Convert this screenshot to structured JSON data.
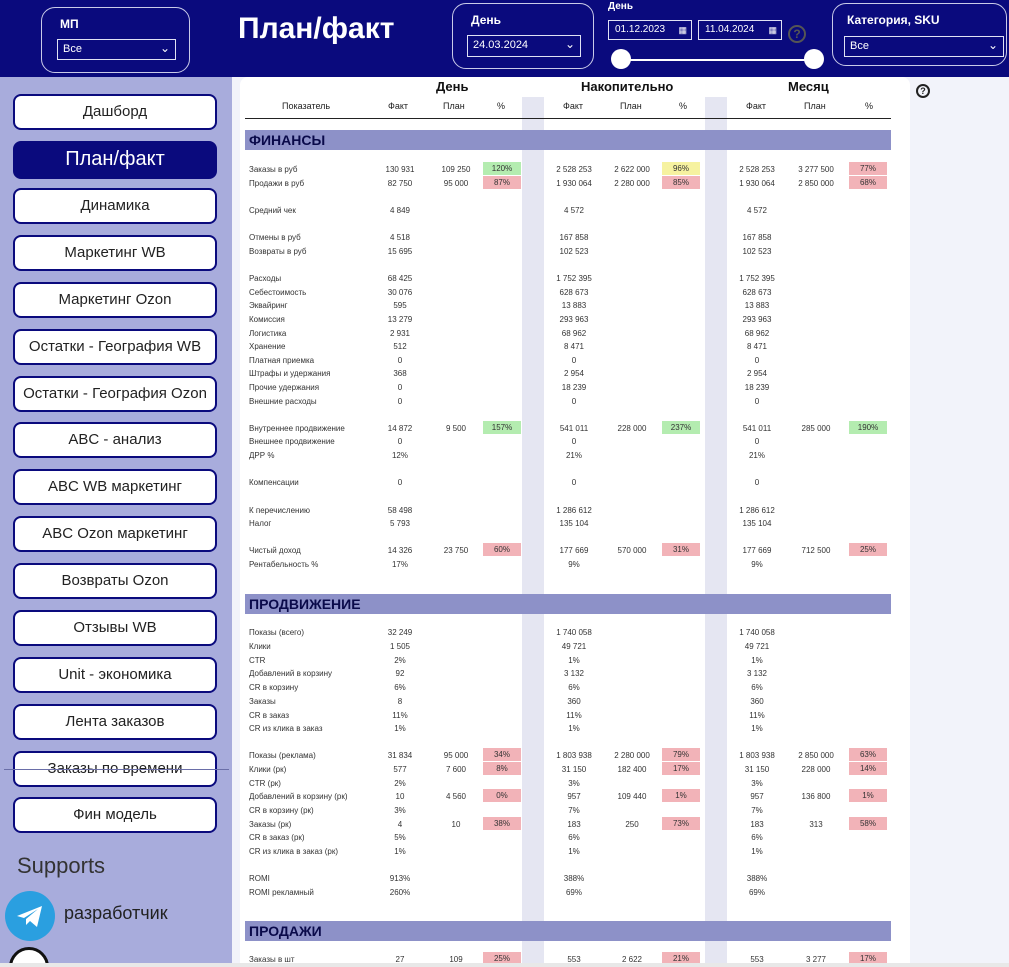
{
  "header": {
    "title": "План/факт",
    "mp": {
      "label": "МП",
      "value": "Все"
    },
    "day": {
      "label": "День",
      "value": "24.03.2024"
    },
    "range": {
      "label": "День",
      "from": "01.12.2023",
      "to": "11.04.2024"
    },
    "category": {
      "label": "Категория, SKU",
      "value": "Все"
    },
    "help": "?"
  },
  "sidebar": {
    "items": [
      {
        "label": "Дашборд"
      },
      {
        "label": "План/факт"
      },
      {
        "label": "Динамика"
      },
      {
        "label": "Маркетинг WB"
      },
      {
        "label": "Маркетинг Ozon"
      },
      {
        "label": "Остатки - География WB"
      },
      {
        "label": "Остатки - География Ozon"
      },
      {
        "label": "ABC - анализ"
      },
      {
        "label": "ABC WB маркетинг"
      },
      {
        "label": "ABC Ozon маркетинг"
      },
      {
        "label": "Возвраты Ozon"
      },
      {
        "label": "Отзывы WB"
      },
      {
        "label": "Unit - экономика"
      },
      {
        "label": "Лента заказов"
      },
      {
        "label": "Заказы по времени"
      },
      {
        "label": "Фин модель"
      }
    ],
    "supports": "Supports",
    "developer": "разработчик"
  },
  "table": {
    "groups": [
      "День",
      "Накопительно",
      "Месяц"
    ],
    "columns": {
      "indicator": "Показатель",
      "fact": "Факт",
      "plan": "План",
      "pct": "%"
    },
    "sections": [
      {
        "title": "ФИНАНСЫ"
      },
      {
        "title": "ПРОДВИЖЕНИЕ"
      },
      {
        "title": "ПРОДАЖИ"
      }
    ],
    "rows": [
      {
        "label": "Заказы в руб",
        "d": [
          "130 931",
          "109 250",
          "120%",
          "green"
        ],
        "n": [
          "2 528 253",
          "2 622 000",
          "96%",
          "yellow"
        ],
        "m": [
          "2 528 253",
          "3 277 500",
          "77%",
          "red"
        ]
      },
      {
        "label": "Продажи в руб",
        "d": [
          "82 750",
          "95 000",
          "87%",
          "red"
        ],
        "n": [
          "1 930 064",
          "2 280 000",
          "85%",
          "red"
        ],
        "m": [
          "1 930 064",
          "2 850 000",
          "68%",
          "red"
        ]
      },
      {
        "label": "Средний чек",
        "d": [
          "4 849",
          "",
          "",
          ""
        ],
        "n": [
          "4 572",
          "",
          "",
          ""
        ],
        "m": [
          "4 572",
          "",
          "",
          ""
        ]
      },
      {
        "label": "Отмены в руб",
        "d": [
          "4 518",
          "",
          "",
          ""
        ],
        "n": [
          "167 858",
          "",
          "",
          ""
        ],
        "m": [
          "167 858",
          "",
          "",
          ""
        ]
      },
      {
        "label": "Возвраты в руб",
        "d": [
          "15 695",
          "",
          "",
          ""
        ],
        "n": [
          "102 523",
          "",
          "",
          ""
        ],
        "m": [
          "102 523",
          "",
          "",
          ""
        ]
      },
      {
        "label": "Расходы",
        "d": [
          "68 425",
          "",
          "",
          ""
        ],
        "n": [
          "1 752 395",
          "",
          "",
          ""
        ],
        "m": [
          "1 752 395",
          "",
          "",
          ""
        ]
      },
      {
        "label": "Себестоимость",
        "d": [
          "30 076",
          "",
          "",
          ""
        ],
        "n": [
          "628 673",
          "",
          "",
          ""
        ],
        "m": [
          "628 673",
          "",
          "",
          ""
        ]
      },
      {
        "label": "Эквайринг",
        "d": [
          "595",
          "",
          "",
          ""
        ],
        "n": [
          "13 883",
          "",
          "",
          ""
        ],
        "m": [
          "13 883",
          "",
          "",
          ""
        ]
      },
      {
        "label": "Комиссия",
        "d": [
          "13 279",
          "",
          "",
          ""
        ],
        "n": [
          "293 963",
          "",
          "",
          ""
        ],
        "m": [
          "293 963",
          "",
          "",
          ""
        ]
      },
      {
        "label": "Логистика",
        "d": [
          "2 931",
          "",
          "",
          ""
        ],
        "n": [
          "68 962",
          "",
          "",
          ""
        ],
        "m": [
          "68 962",
          "",
          "",
          ""
        ]
      },
      {
        "label": "Хранение",
        "d": [
          "512",
          "",
          "",
          ""
        ],
        "n": [
          "8 471",
          "",
          "",
          ""
        ],
        "m": [
          "8 471",
          "",
          "",
          ""
        ]
      },
      {
        "label": "Платная приемка",
        "d": [
          "0",
          "",
          "",
          ""
        ],
        "n": [
          "0",
          "",
          "",
          ""
        ],
        "m": [
          "0",
          "",
          "",
          ""
        ]
      },
      {
        "label": "Штрафы и удержания",
        "d": [
          "368",
          "",
          "",
          ""
        ],
        "n": [
          "2 954",
          "",
          "",
          ""
        ],
        "m": [
          "2 954",
          "",
          "",
          ""
        ]
      },
      {
        "label": "Прочие удержания",
        "d": [
          "0",
          "",
          "",
          ""
        ],
        "n": [
          "18 239",
          "",
          "",
          ""
        ],
        "m": [
          "18 239",
          "",
          "",
          ""
        ]
      },
      {
        "label": "Внешние расходы",
        "d": [
          "0",
          "",
          "",
          ""
        ],
        "n": [
          "0",
          "",
          "",
          ""
        ],
        "m": [
          "0",
          "",
          "",
          ""
        ]
      },
      {
        "label": "Внутреннее продвижение",
        "d": [
          "14 872",
          "9 500",
          "157%",
          "green"
        ],
        "n": [
          "541 011",
          "228 000",
          "237%",
          "green"
        ],
        "m": [
          "541 011",
          "285 000",
          "190%",
          "green"
        ]
      },
      {
        "label": "Внешнее продвижение",
        "d": [
          "0",
          "",
          "",
          ""
        ],
        "n": [
          "0",
          "",
          "",
          ""
        ],
        "m": [
          "0",
          "",
          "",
          ""
        ]
      },
      {
        "label": "ДРР %",
        "d": [
          "12%",
          "",
          "",
          ""
        ],
        "n": [
          "21%",
          "",
          "",
          ""
        ],
        "m": [
          "21%",
          "",
          "",
          ""
        ]
      },
      {
        "label": "Компенсации",
        "d": [
          "0",
          "",
          "",
          ""
        ],
        "n": [
          "0",
          "",
          "",
          ""
        ],
        "m": [
          "0",
          "",
          "",
          ""
        ]
      },
      {
        "label": "К перечислению",
        "d": [
          "58 498",
          "",
          "",
          ""
        ],
        "n": [
          "1 286 612",
          "",
          "",
          ""
        ],
        "m": [
          "1 286 612",
          "",
          "",
          ""
        ]
      },
      {
        "label": "Налог",
        "d": [
          "5 793",
          "",
          "",
          ""
        ],
        "n": [
          "135 104",
          "",
          "",
          ""
        ],
        "m": [
          "135 104",
          "",
          "",
          ""
        ]
      },
      {
        "label": "Чистый доход",
        "d": [
          "14 326",
          "23 750",
          "60%",
          "red"
        ],
        "n": [
          "177 669",
          "570 000",
          "31%",
          "red"
        ],
        "m": [
          "177 669",
          "712 500",
          "25%",
          "red"
        ]
      },
      {
        "label": "Рентабельность %",
        "d": [
          "17%",
          "",
          "",
          ""
        ],
        "n": [
          "9%",
          "",
          "",
          ""
        ],
        "m": [
          "9%",
          "",
          "",
          ""
        ]
      },
      {
        "label": "Показы (всего)",
        "d": [
          "32 249",
          "",
          "",
          ""
        ],
        "n": [
          "1 740 058",
          "",
          "",
          ""
        ],
        "m": [
          "1 740 058",
          "",
          "",
          ""
        ]
      },
      {
        "label": "Клики",
        "d": [
          "1 505",
          "",
          "",
          ""
        ],
        "n": [
          "49 721",
          "",
          "",
          ""
        ],
        "m": [
          "49 721",
          "",
          "",
          ""
        ]
      },
      {
        "label": "CTR",
        "d": [
          "2%",
          "",
          "",
          ""
        ],
        "n": [
          "1%",
          "",
          "",
          ""
        ],
        "m": [
          "1%",
          "",
          "",
          ""
        ]
      },
      {
        "label": "Добавлений в корзину",
        "d": [
          "92",
          "",
          "",
          ""
        ],
        "n": [
          "3 132",
          "",
          "",
          ""
        ],
        "m": [
          "3 132",
          "",
          "",
          ""
        ]
      },
      {
        "label": "CR в корзину",
        "d": [
          "6%",
          "",
          "",
          ""
        ],
        "n": [
          "6%",
          "",
          "",
          ""
        ],
        "m": [
          "6%",
          "",
          "",
          ""
        ]
      },
      {
        "label": "Заказы",
        "d": [
          "8",
          "",
          "",
          ""
        ],
        "n": [
          "360",
          "",
          "",
          ""
        ],
        "m": [
          "360",
          "",
          "",
          ""
        ]
      },
      {
        "label": "CR в заказ",
        "d": [
          "11%",
          "",
          "",
          ""
        ],
        "n": [
          "11%",
          "",
          "",
          ""
        ],
        "m": [
          "11%",
          "",
          "",
          ""
        ]
      },
      {
        "label": "CR из клика в заказ",
        "d": [
          "1%",
          "",
          "",
          ""
        ],
        "n": [
          "1%",
          "",
          "",
          ""
        ],
        "m": [
          "1%",
          "",
          "",
          ""
        ]
      },
      {
        "label": "Показы (реклама)",
        "d": [
          "31 834",
          "95 000",
          "34%",
          "red"
        ],
        "n": [
          "1 803 938",
          "2 280 000",
          "79%",
          "red"
        ],
        "m": [
          "1 803 938",
          "2 850 000",
          "63%",
          "red"
        ]
      },
      {
        "label": "Клики (рк)",
        "d": [
          "577",
          "7 600",
          "8%",
          "red"
        ],
        "n": [
          "31 150",
          "182 400",
          "17%",
          "red"
        ],
        "m": [
          "31 150",
          "228 000",
          "14%",
          "red"
        ]
      },
      {
        "label": "CTR (рк)",
        "d": [
          "2%",
          "",
          "",
          ""
        ],
        "n": [
          "3%",
          "",
          "",
          ""
        ],
        "m": [
          "3%",
          "",
          "",
          ""
        ]
      },
      {
        "label": "Добавлений в корзину (рк)",
        "d": [
          "10",
          "4 560",
          "0%",
          "red"
        ],
        "n": [
          "957",
          "109 440",
          "1%",
          "red"
        ],
        "m": [
          "957",
          "136 800",
          "1%",
          "red"
        ]
      },
      {
        "label": "CR в корзину (рк)",
        "d": [
          "3%",
          "",
          "",
          ""
        ],
        "n": [
          "7%",
          "",
          "",
          ""
        ],
        "m": [
          "7%",
          "",
          "",
          ""
        ]
      },
      {
        "label": "Заказы (рк)",
        "d": [
          "4",
          "10",
          "38%",
          "red"
        ],
        "n": [
          "183",
          "250",
          "73%",
          "red"
        ],
        "m": [
          "183",
          "313",
          "58%",
          "red"
        ]
      },
      {
        "label": "CR в заказ (рк)",
        "d": [
          "5%",
          "",
          "",
          ""
        ],
        "n": [
          "6%",
          "",
          "",
          ""
        ],
        "m": [
          "6%",
          "",
          "",
          ""
        ]
      },
      {
        "label": "CR из клика в заказ (рк)",
        "d": [
          "1%",
          "",
          "",
          ""
        ],
        "n": [
          "1%",
          "",
          "",
          ""
        ],
        "m": [
          "1%",
          "",
          "",
          ""
        ]
      },
      {
        "label": "ROMI",
        "d": [
          "913%",
          "",
          "",
          ""
        ],
        "n": [
          "388%",
          "",
          "",
          ""
        ],
        "m": [
          "388%",
          "",
          "",
          ""
        ]
      },
      {
        "label": "ROMI рекламный",
        "d": [
          "260%",
          "",
          "",
          ""
        ],
        "n": [
          "69%",
          "",
          "",
          ""
        ],
        "m": [
          "69%",
          "",
          "",
          ""
        ]
      },
      {
        "label": "Заказы в шт",
        "d": [
          "27",
          "109",
          "25%",
          "red"
        ],
        "n": [
          "553",
          "2 622",
          "21%",
          "red"
        ],
        "m": [
          "553",
          "3 277",
          "17%",
          "red"
        ]
      }
    ]
  }
}
